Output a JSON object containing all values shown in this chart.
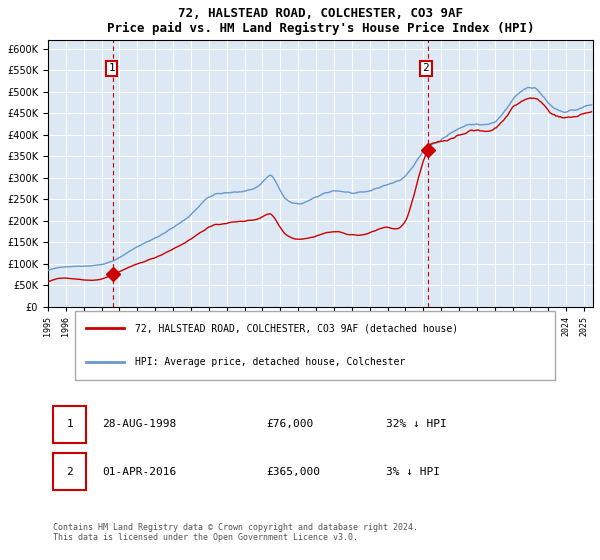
{
  "title": "72, HALSTEAD ROAD, COLCHESTER, CO3 9AF",
  "subtitle": "Price paid vs. HM Land Registry's House Price Index (HPI)",
  "legend_label_red": "72, HALSTEAD ROAD, COLCHESTER, CO3 9AF (detached house)",
  "legend_label_blue": "HPI: Average price, detached house, Colchester",
  "purchase1_date": "28-AUG-1998",
  "purchase1_price": 76000,
  "purchase1_hpi_pct": "32% ↓ HPI",
  "purchase2_date": "01-APR-2016",
  "purchase2_price": 365000,
  "purchase2_hpi_pct": "3% ↓ HPI",
  "xlim_start": 1995.0,
  "xlim_end": 2025.5,
  "ylim_min": 0,
  "ylim_max": 620000,
  "background_color": "#dce9f5",
  "plot_bg_color": "#dce9f5",
  "red_line_color": "#cc0000",
  "blue_line_color": "#6699cc",
  "grid_color": "#ffffff",
  "vline_color": "#cc0000",
  "footer": "Contains HM Land Registry data © Crown copyright and database right 2024.\nThis data is licensed under the Open Government Licence v3.0."
}
